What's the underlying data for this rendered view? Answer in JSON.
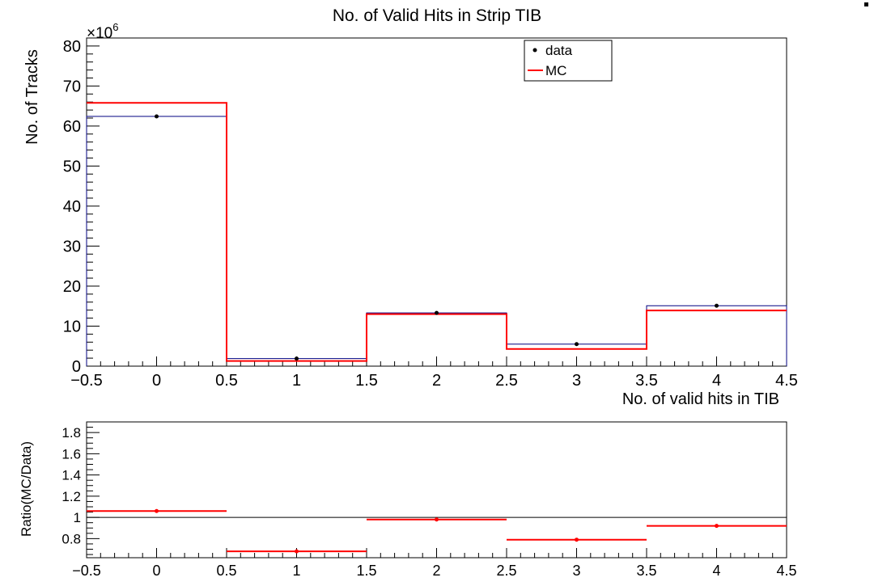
{
  "chart_data": [
    {
      "type": "step",
      "title": "No. of Valid Hits in Strip TIB",
      "xlabel": "No. of valid hits in TIB",
      "ylabel": "No. of Tracks",
      "y_multiplier_label": "×10",
      "y_multiplier_exponent": "6",
      "xlim": [
        -0.5,
        4.5
      ],
      "ylim": [
        0,
        82
      ],
      "x_ticks": [
        -0.5,
        0,
        0.5,
        1,
        1.5,
        2,
        2.5,
        3,
        3.5,
        4,
        4.5
      ],
      "y_ticks": [
        0,
        10,
        20,
        30,
        40,
        50,
        60,
        70,
        80
      ],
      "x_tick_labels": [
        "−0.5",
        "0",
        "0.5",
        "1",
        "1.5",
        "2",
        "2.5",
        "3",
        "3.5",
        "4",
        "4.5"
      ],
      "y_tick_labels": [
        "0",
        "10",
        "20",
        "30",
        "40",
        "50",
        "60",
        "70",
        "80"
      ],
      "bin_edges": [
        -0.5,
        0.5,
        1.5,
        2.5,
        3.5,
        4.5
      ],
      "bin_centers": [
        0,
        1,
        2,
        3,
        4
      ],
      "series": [
        {
          "name": "data",
          "style": "markers",
          "color": "#000000",
          "values": [
            62.4,
            1.9,
            13.3,
            5.5,
            15.1
          ]
        },
        {
          "name": "MC",
          "style": "step",
          "color": "#ff0000",
          "values": [
            65.8,
            1.3,
            13.0,
            4.3,
            13.9
          ]
        }
      ],
      "data_hist_color": "#000080",
      "legend": {
        "placement": "top-right",
        "entries": [
          "data",
          "MC"
        ]
      }
    },
    {
      "type": "scatter",
      "xlabel": "",
      "ylabel": "Ratio(MC/Data)",
      "xlim": [
        -0.5,
        4.5
      ],
      "ylim": [
        0.62,
        1.9
      ],
      "x_ticks": [
        -0.5,
        0,
        0.5,
        1,
        1.5,
        2,
        2.5,
        3,
        3.5,
        4,
        4.5
      ],
      "y_ticks": [
        0.8,
        1.0,
        1.2,
        1.4,
        1.6,
        1.8
      ],
      "x_tick_labels": [
        "−0.5",
        "0",
        "0.5",
        "1",
        "1.5",
        "2",
        "2.5",
        "3",
        "3.5",
        "4",
        "4.5"
      ],
      "y_tick_labels": [
        "0.8",
        "1",
        "1.2",
        "1.4",
        "1.6",
        "1.8"
      ],
      "reference_line": 1.0,
      "bin_centers": [
        0,
        1,
        2,
        3,
        4
      ],
      "ratio_values": [
        1.06,
        0.68,
        0.98,
        0.79,
        0.92
      ],
      "ratio_color": "#ff0000"
    }
  ]
}
